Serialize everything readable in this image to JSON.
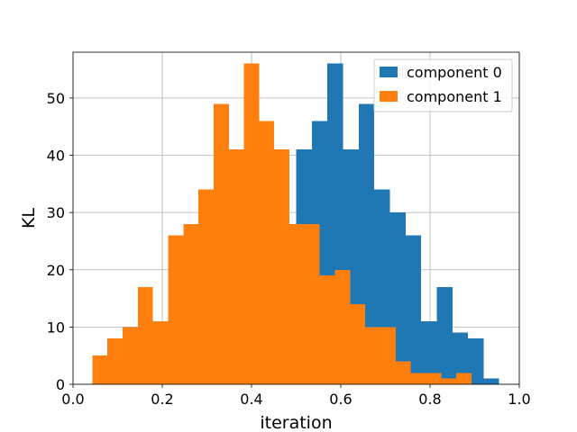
{
  "chart_data": {
    "type": "bar",
    "title": "",
    "xlabel": "iteration",
    "ylabel": "KL",
    "xlim": [
      0.0,
      1.0
    ],
    "ylim": [
      0,
      58
    ],
    "grid": true,
    "legend_position": "top-right",
    "x_ticks": [
      "0.0",
      "0.2",
      "0.4",
      "0.6",
      "0.8",
      "1.0"
    ],
    "y_ticks": [
      "0",
      "10",
      "20",
      "30",
      "40",
      "50"
    ],
    "x_tick_values": [
      0.0,
      0.2,
      0.4,
      0.6,
      0.8,
      1.0
    ],
    "y_tick_values": [
      0,
      10,
      20,
      30,
      40,
      50
    ],
    "series": [
      {
        "name": "component 0",
        "color": "#1f77b4",
        "bin_edges": [
          0.5,
          0.535,
          0.57,
          0.605,
          0.64,
          0.675,
          0.71,
          0.745,
          0.78,
          0.815,
          0.85,
          0.885,
          0.92,
          0.955
        ],
        "counts": [
          41,
          46,
          56,
          41,
          49,
          34,
          30,
          26,
          11,
          17,
          9,
          8,
          1
        ]
      },
      {
        "name": "component 1",
        "color": "#ff7f0e",
        "bin_edges": [
          0.043,
          0.077,
          0.111,
          0.145,
          0.179,
          0.213,
          0.247,
          0.281,
          0.315,
          0.349,
          0.383,
          0.417,
          0.451,
          0.485,
          0.519,
          0.553,
          0.587,
          0.621,
          0.655,
          0.689,
          0.723,
          0.757,
          0.791,
          0.825,
          0.859,
          0.893,
          0.927
        ],
        "counts": [
          5,
          8,
          10,
          17,
          11,
          26,
          28,
          34,
          49,
          41,
          56,
          46,
          41,
          28,
          28,
          19,
          20,
          14,
          10,
          10,
          4,
          2,
          2,
          1,
          2,
          0
        ]
      }
    ]
  }
}
